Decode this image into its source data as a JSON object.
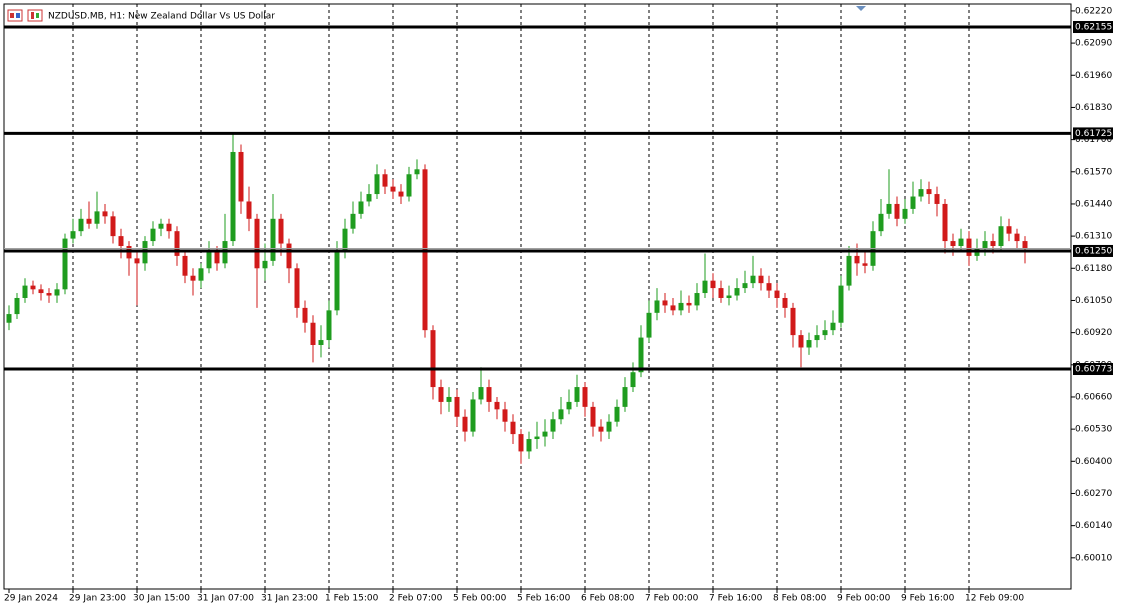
{
  "chart_data": {
    "type": "candlestick",
    "title": "NZDUSD.MB, H1:  New Zealand Dollar Vs US Dollar",
    "categories": [
      "29 Jan 2024",
      null,
      null,
      null,
      null,
      null,
      null,
      null,
      "29 Jan 23:00",
      null,
      null,
      null,
      null,
      null,
      null,
      null,
      "30 Jan 15:00",
      null,
      null,
      null,
      null,
      null,
      null,
      null,
      "31 Jan 07:00",
      null,
      null,
      null,
      null,
      null,
      null,
      null,
      "31 Jan 23:00",
      null,
      null,
      null,
      null,
      null,
      null,
      null,
      "1 Feb 15:00",
      null,
      null,
      null,
      null,
      null,
      null,
      null,
      "2 Feb 07:00",
      null,
      null,
      null,
      null,
      null,
      null,
      null,
      "5 Feb 00:00",
      null,
      null,
      null,
      null,
      null,
      null,
      null,
      "5 Feb 16:00",
      null,
      null,
      null,
      null,
      null,
      null,
      null,
      "6 Feb 08:00",
      null,
      null,
      null,
      null,
      null,
      null,
      null,
      "7 Feb 00:00",
      null,
      null,
      null,
      null,
      null,
      null,
      null,
      "7 Feb 16:00",
      null,
      null,
      null,
      null,
      null,
      null,
      null,
      "8 Feb 08:00",
      null,
      null,
      null,
      null,
      null,
      null,
      null,
      "9 Feb 00:00",
      null,
      null,
      null,
      null,
      null,
      null,
      null,
      "9 Feb 16:00",
      null,
      null,
      null,
      null,
      null,
      null,
      null,
      "12 Feb 09:00",
      null,
      null,
      null,
      null,
      null,
      null,
      null
    ],
    "open": [
      0.6096,
      0.60995,
      0.6106,
      0.6111,
      0.61095,
      0.6108,
      0.6107,
      0.61095,
      0.613,
      0.6133,
      0.6138,
      0.6136,
      0.6141,
      0.6139,
      0.6131,
      0.6127,
      0.6122,
      0.612,
      0.6129,
      0.6134,
      0.6136,
      0.6133,
      0.6123,
      0.6115,
      0.6113,
      0.6118,
      0.6125,
      0.612,
      0.6129,
      0.6165,
      0.6145,
      0.6138,
      0.6118,
      0.6121,
      0.6138,
      0.6128,
      0.6118,
      0.6102,
      0.6096,
      0.6087,
      0.6089,
      0.6101,
      0.6125,
      0.6134,
      0.614,
      0.6145,
      0.6148,
      0.6156,
      0.6151,
      0.6149,
      0.6147,
      0.6156,
      0.6158,
      0.6093,
      0.607,
      0.6064,
      0.6066,
      0.6058,
      0.6052,
      0.6065,
      0.607,
      0.6064,
      0.6061,
      0.6056,
      0.6051,
      0.6044,
      0.6049,
      0.605,
      0.6052,
      0.6057,
      0.6061,
      0.6064,
      0.607,
      0.6062,
      0.6054,
      0.6052,
      0.6056,
      0.6062,
      0.607,
      0.6076,
      0.609,
      0.61,
      0.6105,
      0.6103,
      0.6101,
      0.6104,
      0.6103,
      0.6108,
      0.6113,
      0.611,
      0.6106,
      0.6107,
      0.611,
      0.6112,
      0.6115,
      0.6112,
      0.6109,
      0.6106,
      0.6102,
      0.6091,
      0.6086,
      0.6089,
      0.6091,
      0.6093,
      0.6096,
      0.6111,
      0.6123,
      0.612,
      0.6119,
      0.6133,
      0.614,
      0.6144,
      0.6138,
      0.6142,
      0.6147,
      0.615,
      0.6148,
      0.6144,
      0.6129,
      0.6127,
      0.613,
      0.6123,
      0.6126,
      0.6129,
      0.6127,
      0.6135,
      0.6132,
      0.6129
    ],
    "high": [
      0.6103,
      0.6108,
      0.6114,
      0.6113,
      0.61115,
      0.611,
      0.6112,
      0.6132,
      0.6138,
      0.6142,
      0.6145,
      0.6149,
      0.6144,
      0.6141,
      0.6134,
      0.6129,
      0.6125,
      0.6131,
      0.6137,
      0.6138,
      0.6138,
      0.6135,
      0.6125,
      0.6118,
      0.612,
      0.6129,
      0.6127,
      0.614,
      0.6173,
      0.6168,
      0.6151,
      0.614,
      0.6128,
      0.6148,
      0.614,
      0.613,
      0.612,
      0.6105,
      0.6099,
      0.6095,
      0.6105,
      0.6129,
      0.6138,
      0.6145,
      0.6149,
      0.6152,
      0.616,
      0.6158,
      0.6154,
      0.6152,
      0.6159,
      0.6162,
      0.616,
      0.6095,
      0.6073,
      0.607,
      0.6069,
      0.6061,
      0.6068,
      0.6078,
      0.6073,
      0.6066,
      0.6064,
      0.6059,
      0.6053,
      0.6052,
      0.6056,
      0.6057,
      0.606,
      0.6066,
      0.6069,
      0.6075,
      0.6072,
      0.6064,
      0.6057,
      0.6059,
      0.6065,
      0.6074,
      0.608,
      0.6095,
      0.6105,
      0.611,
      0.6108,
      0.6106,
      0.6109,
      0.6107,
      0.6112,
      0.6124,
      0.6116,
      0.6113,
      0.6111,
      0.6114,
      0.6117,
      0.6123,
      0.6118,
      0.6115,
      0.6112,
      0.6108,
      0.6104,
      0.6093,
      0.6092,
      0.6095,
      0.6097,
      0.6101,
      0.6115,
      0.6127,
      0.6128,
      0.6125,
      0.6137,
      0.6146,
      0.6158,
      0.6147,
      0.6146,
      0.6153,
      0.6154,
      0.6153,
      0.6151,
      0.6146,
      0.6132,
      0.6134,
      0.6133,
      0.613,
      0.6133,
      0.6132,
      0.6139,
      0.6138,
      0.6134,
      0.6131
    ],
    "low": [
      0.6093,
      0.60975,
      0.6104,
      0.61075,
      0.6105,
      0.6104,
      0.6104,
      0.61075,
      0.6128,
      0.6131,
      0.6134,
      0.6134,
      0.6136,
      0.6128,
      0.6122,
      0.6115,
      0.6103,
      0.6117,
      0.6127,
      0.6131,
      0.613,
      0.6119,
      0.6112,
      0.6107,
      0.611,
      0.6116,
      0.6117,
      0.6118,
      0.6127,
      0.614,
      0.6133,
      0.6102,
      0.6113,
      0.6119,
      0.6123,
      0.6112,
      0.6098,
      0.6092,
      0.608,
      0.6082,
      0.6086,
      0.6099,
      0.6122,
      0.6132,
      0.6138,
      0.6143,
      0.6146,
      0.6148,
      0.6146,
      0.6144,
      0.6145,
      0.6154,
      0.609,
      0.6065,
      0.6059,
      0.606,
      0.6054,
      0.6048,
      0.605,
      0.6063,
      0.606,
      0.6057,
      0.6052,
      0.6047,
      0.6039,
      0.6041,
      0.6045,
      0.6046,
      0.6049,
      0.6055,
      0.6059,
      0.6062,
      0.6058,
      0.605,
      0.6048,
      0.6049,
      0.6054,
      0.606,
      0.6068,
      0.6074,
      0.6088,
      0.6097,
      0.61,
      0.6099,
      0.6099,
      0.61,
      0.6101,
      0.6106,
      0.6106,
      0.6104,
      0.6103,
      0.6105,
      0.6108,
      0.611,
      0.6109,
      0.6106,
      0.6102,
      0.6098,
      0.6086,
      0.6078,
      0.6083,
      0.6086,
      0.6089,
      0.6091,
      0.6094,
      0.6109,
      0.6115,
      0.6116,
      0.6117,
      0.6131,
      0.6138,
      0.6135,
      0.6136,
      0.614,
      0.6145,
      0.6144,
      0.6139,
      0.6124,
      0.6123,
      0.6125,
      0.6119,
      0.6121,
      0.6123,
      0.6124,
      0.6125,
      0.6129,
      0.6126,
      0.612
    ],
    "close": [
      0.60995,
      0.6106,
      0.6111,
      0.61095,
      0.6108,
      0.6107,
      0.61095,
      0.613,
      0.6133,
      0.6138,
      0.6136,
      0.6141,
      0.6139,
      0.6131,
      0.6127,
      0.6122,
      0.612,
      0.6129,
      0.6134,
      0.6136,
      0.6133,
      0.6123,
      0.6115,
      0.6113,
      0.6118,
      0.6125,
      0.612,
      0.6129,
      0.6165,
      0.6145,
      0.6138,
      0.6118,
      0.6121,
      0.6138,
      0.6128,
      0.6118,
      0.6102,
      0.6096,
      0.6087,
      0.6089,
      0.6101,
      0.6125,
      0.6134,
      0.614,
      0.6145,
      0.6148,
      0.6156,
      0.6151,
      0.6149,
      0.6147,
      0.6156,
      0.6158,
      0.6093,
      0.607,
      0.6064,
      0.6066,
      0.6058,
      0.6052,
      0.6065,
      0.607,
      0.6064,
      0.6061,
      0.6056,
      0.6051,
      0.6044,
      0.6049,
      0.605,
      0.6052,
      0.6057,
      0.6061,
      0.6064,
      0.607,
      0.6062,
      0.6054,
      0.6052,
      0.6056,
      0.6062,
      0.607,
      0.6076,
      0.609,
      0.61,
      0.6105,
      0.6103,
      0.6101,
      0.6104,
      0.6103,
      0.6108,
      0.6113,
      0.611,
      0.6106,
      0.6107,
      0.611,
      0.6112,
      0.6115,
      0.6112,
      0.6109,
      0.6106,
      0.6102,
      0.6091,
      0.6086,
      0.6089,
      0.6091,
      0.6093,
      0.6096,
      0.6111,
      0.6123,
      0.612,
      0.6119,
      0.6133,
      0.614,
      0.6144,
      0.6138,
      0.6142,
      0.6147,
      0.615,
      0.6148,
      0.6144,
      0.6129,
      0.6127,
      0.613,
      0.6123,
      0.6126,
      0.6129,
      0.6127,
      0.6135,
      0.6132,
      0.6129,
      0.6126
    ],
    "up_color": "#1f9c1f",
    "down_color": "#d11a1a",
    "ylim": [
      0.59884,
      0.62248
    ],
    "yticks": [
      {
        "value": 0.6222,
        "label": "0.62220"
      },
      {
        "value": 0.6209,
        "label": "0.62090"
      },
      {
        "value": 0.6196,
        "label": "0.61960"
      },
      {
        "value": 0.6183,
        "label": "0.61830"
      },
      {
        "value": 0.617,
        "label": "0.61700"
      },
      {
        "value": 0.6157,
        "label": "0.61570"
      },
      {
        "value": 0.6144,
        "label": "0.61440"
      },
      {
        "value": 0.6131,
        "label": "0.61310"
      },
      {
        "value": 0.6118,
        "label": "0.61180"
      },
      {
        "value": 0.6105,
        "label": "0.61050"
      },
      {
        "value": 0.6092,
        "label": "0.60920"
      },
      {
        "value": 0.6079,
        "label": "0.60790"
      },
      {
        "value": 0.6066,
        "label": "0.60660"
      },
      {
        "value": 0.6053,
        "label": "0.60530"
      },
      {
        "value": 0.604,
        "label": "0.60400"
      },
      {
        "value": 0.6027,
        "label": "0.60270"
      },
      {
        "value": 0.6014,
        "label": "0.60140"
      },
      {
        "value": 0.6001,
        "label": "0.60010"
      }
    ],
    "levels": [
      {
        "value": 0.62155,
        "label": "0.62155"
      },
      {
        "value": 0.61725,
        "label": "0.61725"
      },
      {
        "value": 0.6125,
        "label": "0.61250"
      },
      {
        "value": 0.60773,
        "label": "0.60773"
      }
    ]
  }
}
